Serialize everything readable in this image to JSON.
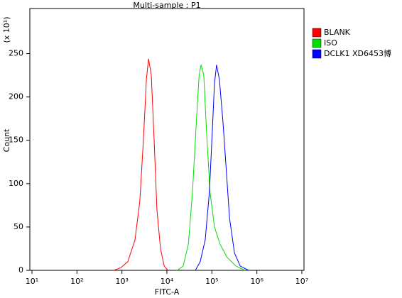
{
  "chart_data": {
    "type": "line",
    "title": "Multi-sample : P1",
    "x_label": "FITC-A",
    "y_label": "Count",
    "y_scale_note": "(x 10¹)",
    "x_log": true,
    "legend_position": "upper right",
    "xlim": [
      10,
      10000000
    ],
    "xticks": [
      {
        "value": 10,
        "label": "10¹"
      },
      {
        "value": 100,
        "label": "10²"
      },
      {
        "value": 1000,
        "label": "10³"
      },
      {
        "value": 10000,
        "label": "10⁴"
      },
      {
        "value": 100000,
        "label": "10⁵"
      },
      {
        "value": 1000000,
        "label": "10⁶"
      },
      {
        "value": 10000000,
        "label": "10⁷"
      }
    ],
    "ylim": [
      0,
      302
    ],
    "yticks": [
      0,
      50,
      100,
      150,
      200,
      250
    ],
    "series": [
      {
        "name": "BLANK",
        "color": "#ff0000",
        "x": [
          660,
          940,
          1350,
          1950,
          2500,
          3000,
          3500,
          3900,
          4500,
          5200,
          6000,
          7200,
          8700,
          10500
        ],
        "values": [
          0,
          3,
          10,
          35,
          80,
          150,
          220,
          244,
          225,
          150,
          70,
          25,
          5,
          0
        ]
      },
      {
        "name": "ISO",
        "color": "#00dd00",
        "x": [
          17000,
          23000,
          30000,
          37000,
          45000,
          52000,
          57500,
          66000,
          76000,
          91000,
          114000,
          152000,
          218000,
          340000,
          545000
        ],
        "values": [
          0,
          5,
          30,
          90,
          170,
          225,
          237,
          225,
          160,
          90,
          50,
          30,
          15,
          5,
          0
        ]
      },
      {
        "name": "DCLK1  XD6453博",
        "color": "#0000ff",
        "x": [
          43000,
          55000,
          71000,
          88000,
          102000,
          114000,
          127000,
          147000,
          177000,
          206000,
          247000,
          318000,
          426000,
          655000
        ],
        "values": [
          0,
          10,
          35,
          90,
          160,
          215,
          237,
          220,
          170,
          120,
          60,
          20,
          5,
          0
        ]
      }
    ]
  }
}
